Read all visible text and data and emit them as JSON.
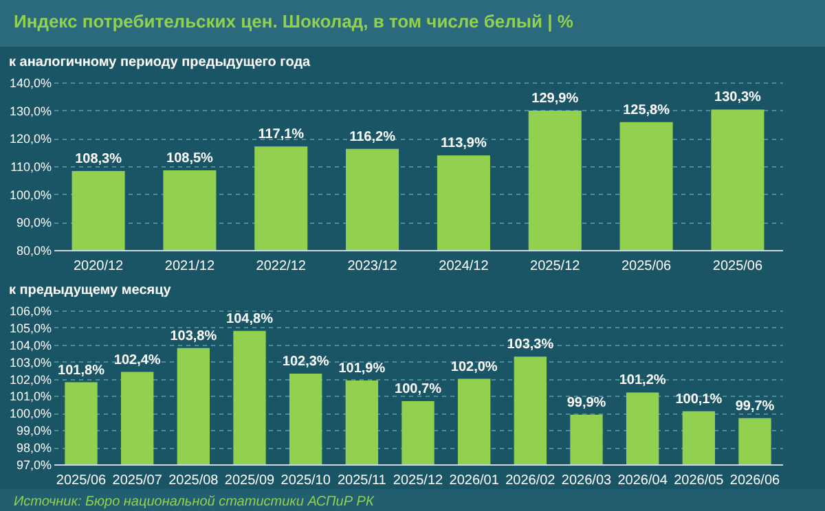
{
  "chart_data": [
    {
      "type": "bar",
      "title": "Индекс потребительских цен. Шоколад, в том числе белый | %",
      "subtitle": "к аналогичному периоду предыдущего года",
      "categories": [
        "2020/12",
        "2021/12",
        "2022/12",
        "2023/12",
        "2024/12",
        "2025/12",
        "2025/06",
        "2025/06"
      ],
      "values": [
        108.3,
        108.5,
        117.1,
        116.2,
        113.9,
        129.9,
        125.8,
        130.3
      ],
      "value_labels": [
        "108,3%",
        "108,5%",
        "117,1%",
        "116,2%",
        "113,9%",
        "129,9%",
        "125,8%",
        "130,3%"
      ],
      "color": "#92d050",
      "ylim": [
        80,
        140
      ],
      "yticks": [
        {
          "value": 80,
          "label": "80,0%"
        },
        {
          "value": 90,
          "label": "90,0%"
        },
        {
          "value": 100,
          "label": "100,0%"
        },
        {
          "value": 110,
          "label": "110,0%"
        },
        {
          "value": 120,
          "label": "120,0%"
        },
        {
          "value": 130,
          "label": "130,0%"
        },
        {
          "value": 140,
          "label": "140,0%"
        }
      ],
      "grid": "y"
    },
    {
      "type": "bar",
      "subtitle": "к предыдущему месяцу",
      "categories": [
        "2025/06",
        "2025/07",
        "2025/08",
        "2025/09",
        "2025/10",
        "2025/11",
        "2025/12",
        "2026/01",
        "2026/02",
        "2026/03",
        "2026/04",
        "2026/05",
        "2026/06"
      ],
      "values": [
        101.8,
        102.4,
        103.8,
        104.8,
        102.3,
        101.9,
        100.7,
        102.0,
        103.3,
        99.9,
        101.2,
        100.1,
        99.7
      ],
      "value_labels": [
        "101,8%",
        "102,4%",
        "103,8%",
        "104,8%",
        "102,3%",
        "101,9%",
        "100,7%",
        "102,0%",
        "103,3%",
        "99,9%",
        "101,2%",
        "100,1%",
        "99,7%"
      ],
      "color": "#92d050",
      "ylim": [
        97,
        106
      ],
      "yticks": [
        {
          "value": 97,
          "label": "97,0%"
        },
        {
          "value": 98,
          "label": "98,0%"
        },
        {
          "value": 99,
          "label": "99,0%"
        },
        {
          "value": 100,
          "label": "100,0%"
        },
        {
          "value": 101,
          "label": "101,0%"
        },
        {
          "value": 102,
          "label": "102,0%"
        },
        {
          "value": 103,
          "label": "103,0%"
        },
        {
          "value": 104,
          "label": "104,0%"
        },
        {
          "value": 105,
          "label": "105,0%"
        },
        {
          "value": 106,
          "label": "106,0%"
        }
      ],
      "grid": "y",
      "annotations": [
        "Источник: Бюро национальной статистики АСПиР РК"
      ]
    }
  ]
}
